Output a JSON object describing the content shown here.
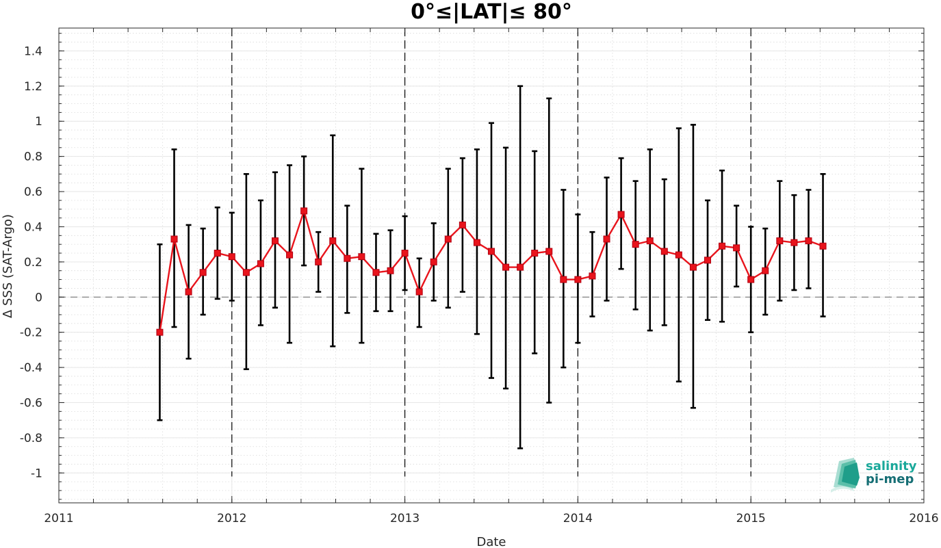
{
  "chart_data": {
    "type": "line",
    "title": "0°≤|LAT|≤ 80°",
    "xlabel": "Date",
    "ylabel": "Δ SSS (SAT-Argo)",
    "xlim": [
      "2011-01-01",
      "2016-01-01"
    ],
    "ylim": [
      -1.17,
      1.53
    ],
    "x_ticks": [
      "2011",
      "2012",
      "2013",
      "2014",
      "2015",
      "2016"
    ],
    "y_ticks": [
      "-1",
      "-0.8",
      "-0.6",
      "-0.4",
      "-0.2",
      "0",
      "0.2",
      "0.4",
      "0.6",
      "0.8",
      "1",
      "1.2",
      "1.4"
    ],
    "grid": true,
    "reference_line": 0,
    "year_boundaries": [
      "2012",
      "2013",
      "2014",
      "2015"
    ],
    "line_color": "#e8141c",
    "errorbar_color": "#000000",
    "series": [
      {
        "dates": [
          "2011-08",
          "2011-09",
          "2011-10",
          "2011-11",
          "2011-12",
          "2012-01",
          "2012-02",
          "2012-03",
          "2012-04",
          "2012-05",
          "2012-06",
          "2012-07",
          "2012-08",
          "2012-09",
          "2012-10",
          "2012-11",
          "2012-12",
          "2013-01",
          "2013-02",
          "2013-03",
          "2013-04",
          "2013-05",
          "2013-06",
          "2013-07",
          "2013-08",
          "2013-09",
          "2013-10",
          "2013-11",
          "2013-12",
          "2014-01",
          "2014-02",
          "2014-03",
          "2014-04",
          "2014-05",
          "2014-06",
          "2014-07",
          "2014-08",
          "2014-09",
          "2014-10",
          "2014-11",
          "2014-12",
          "2015-01",
          "2015-02",
          "2015-03",
          "2015-04",
          "2015-05",
          "2015-06"
        ],
        "mean": [
          -0.2,
          0.33,
          0.03,
          0.14,
          0.25,
          0.23,
          0.14,
          0.19,
          0.32,
          0.24,
          0.49,
          0.2,
          0.32,
          0.22,
          0.23,
          0.14,
          0.15,
          0.25,
          0.03,
          0.2,
          0.33,
          0.41,
          0.31,
          0.26,
          0.17,
          0.17,
          0.25,
          0.26,
          0.1,
          0.1,
          0.12,
          0.33,
          0.47,
          0.3,
          0.32,
          0.26,
          0.24,
          0.17,
          0.21,
          0.29,
          0.28,
          0.1,
          0.15,
          0.32,
          0.31,
          0.32,
          0.29
        ],
        "lower": [
          -0.7,
          -0.17,
          -0.35,
          -0.1,
          -0.01,
          -0.02,
          -0.41,
          -0.16,
          -0.06,
          -0.26,
          0.18,
          0.03,
          -0.28,
          -0.09,
          -0.26,
          -0.08,
          -0.08,
          0.04,
          -0.17,
          -0.02,
          -0.06,
          0.03,
          -0.21,
          -0.46,
          -0.52,
          -0.86,
          -0.32,
          -0.6,
          -0.4,
          -0.26,
          -0.11,
          -0.02,
          0.16,
          -0.07,
          -0.19,
          -0.16,
          -0.48,
          -0.63,
          -0.13,
          -0.14,
          0.06,
          -0.2,
          -0.1,
          -0.02,
          0.04,
          0.05,
          -0.11
        ],
        "upper": [
          0.3,
          0.84,
          0.41,
          0.39,
          0.51,
          0.48,
          0.7,
          0.55,
          0.71,
          0.75,
          0.8,
          0.37,
          0.92,
          0.52,
          0.73,
          0.36,
          0.38,
          0.46,
          0.22,
          0.42,
          0.73,
          0.79,
          0.84,
          0.99,
          0.85,
          1.2,
          0.83,
          1.13,
          0.61,
          0.47,
          0.37,
          0.68,
          0.79,
          0.66,
          0.84,
          0.67,
          0.96,
          0.98,
          0.55,
          0.72,
          0.52,
          0.4,
          0.39,
          0.66,
          0.58,
          0.61,
          0.7
        ]
      }
    ]
  },
  "logo": {
    "line1": "salinity",
    "line2": "pi-mep",
    "color1": "#1aa89a",
    "color2": "#156e74"
  }
}
